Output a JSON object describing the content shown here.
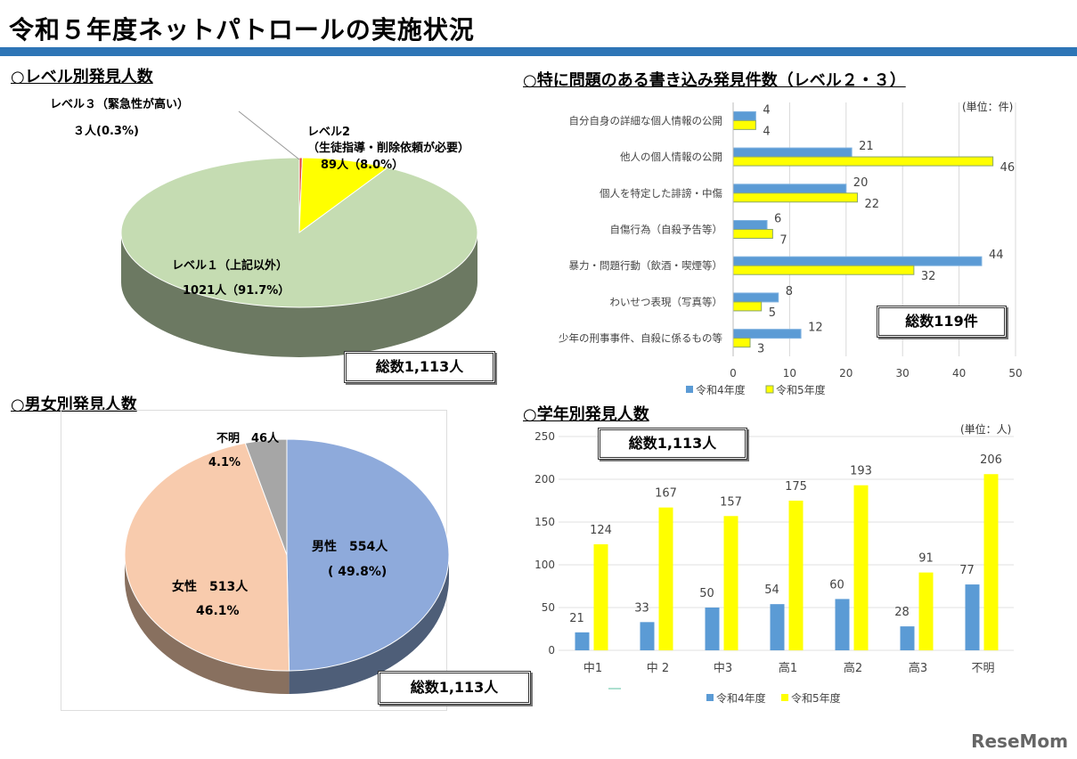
{
  "page": {
    "title": "令和５年度ネットパトロールの実施状況",
    "logo": "ReseMom"
  },
  "sections": {
    "level": "○レベル別発見人数",
    "gender": "○男女別発見人数",
    "problem": "○特に問題のある書き込み発見件数（レベル２・３）",
    "grade": "○学年別発見人数"
  },
  "totals": {
    "level": "総数1,113人",
    "gender": "総数1,113人",
    "problem": "総数119件",
    "grade": "総数1,113人"
  },
  "units": {
    "problem": "(単位：件)",
    "grade": "(単位：人)"
  },
  "chart_data": [
    {
      "type": "pie",
      "title": "○レベル別発見人数",
      "slices": [
        {
          "name": "レベル１（上記以外）",
          "value": 1021,
          "percent": 91.7,
          "label1": "レベル１（上記以外）",
          "label2": "1021人（91.7%）",
          "color": "#c5dcb2"
        },
        {
          "name": "レベル３（緊急性が高い）",
          "value": 3,
          "percent": 0.3,
          "label1": "レベル３（緊急性が高い）",
          "label2": "３人(0.3%)",
          "color": "#e0403a"
        },
        {
          "name": "レベル2（生徒指導・削除依頼が必要）",
          "value": 89,
          "percent": 8.0,
          "label1": "レベル2",
          "label1b": "（生徒指導・削除依頼が必要）",
          "label2": "89人（8.0%）",
          "color": "#ffff00"
        }
      ],
      "total": 1113
    },
    {
      "type": "pie",
      "title": "○男女別発見人数",
      "slices": [
        {
          "name": "男性",
          "value": 554,
          "percent": 49.8,
          "label1": "男性　554人",
          "label2": "( 49.8%)",
          "color": "#8eaadb"
        },
        {
          "name": "女性",
          "value": 513,
          "percent": 46.1,
          "label1": "女性　513人",
          "label2": "46.1%",
          "color": "#f8cbad"
        },
        {
          "name": "不明",
          "value": 46,
          "percent": 4.1,
          "label1": "不明　46人",
          "label2": "4.1%",
          "color": "#a6a6a6"
        }
      ],
      "total": 1113
    },
    {
      "type": "bar",
      "orientation": "horizontal",
      "title": "○特に問題のある書き込み発見件数（レベル２・３）",
      "categories": [
        "自分自身の詳細な個人情報の公開",
        "他人の個人情報の公開",
        "個人を特定した誹謗・中傷",
        "自傷行為（自殺予告等）",
        "暴力・問題行動（飲酒・喫煙等）",
        "わいせつ表現（写真等）",
        "少年の刑事事件、自殺に係るもの等"
      ],
      "series": [
        {
          "name": "令和4年度",
          "values": [
            4,
            21,
            20,
            6,
            44,
            8,
            12
          ],
          "color": "#5b9bd5"
        },
        {
          "name": "令和5年度",
          "values": [
            4,
            46,
            22,
            7,
            32,
            5,
            3
          ],
          "color": "#ffff00"
        }
      ],
      "xlim": [
        0,
        50
      ],
      "xticks": [
        0,
        10,
        20,
        30,
        40,
        50
      ],
      "legend": "bottom",
      "grid": true
    },
    {
      "type": "bar",
      "orientation": "vertical",
      "title": "○学年別発見人数",
      "categories": [
        "中1",
        "中 2",
        "中3",
        "高1",
        "高2",
        "高3",
        "不明"
      ],
      "series": [
        {
          "name": "令和4年度",
          "values": [
            21,
            33,
            50,
            54,
            60,
            28,
            77
          ],
          "color": "#5b9bd5"
        },
        {
          "name": "令和5年度",
          "values": [
            124,
            167,
            157,
            175,
            193,
            91,
            206
          ],
          "color": "#ffff00"
        }
      ],
      "ylim": [
        0,
        250
      ],
      "yticks": [
        0,
        50,
        100,
        150,
        200,
        250
      ],
      "legend": "bottom",
      "grid": true
    }
  ]
}
